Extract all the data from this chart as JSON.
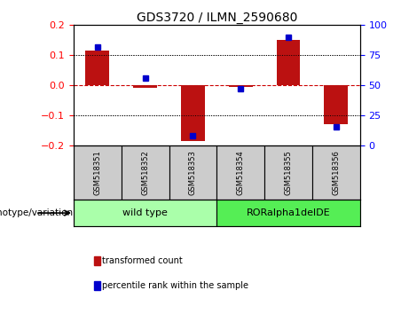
{
  "title": "GDS3720 / ILMN_2590680",
  "samples": [
    "GSM518351",
    "GSM518352",
    "GSM518353",
    "GSM518354",
    "GSM518355",
    "GSM518356"
  ],
  "transformed_count": [
    0.115,
    -0.01,
    -0.185,
    -0.005,
    0.15,
    -0.13
  ],
  "percentile_rank": [
    82,
    56,
    8,
    47,
    90,
    15
  ],
  "groups": [
    {
      "label": "wild type",
      "indices": [
        0,
        1,
        2
      ],
      "color": "#aaffaa"
    },
    {
      "label": "RORalpha1delDE",
      "indices": [
        3,
        4,
        5
      ],
      "color": "#55ee55"
    }
  ],
  "ylim_left": [
    -0.2,
    0.2
  ],
  "ylim_right": [
    0,
    100
  ],
  "yticks_left": [
    -0.2,
    -0.1,
    0,
    0.1,
    0.2
  ],
  "yticks_right": [
    0,
    25,
    50,
    75,
    100
  ],
  "bar_color": "#BB1111",
  "dot_color": "#0000CC",
  "hline_color": "#CC0000",
  "legend_items": [
    "transformed count",
    "percentile rank within the sample"
  ],
  "legend_colors": [
    "#BB1111",
    "#0000CC"
  ],
  "xlabel_genotype": "genotype/variation",
  "sample_bg": "#cccccc",
  "figsize": [
    4.61,
    3.54
  ],
  "dpi": 100
}
